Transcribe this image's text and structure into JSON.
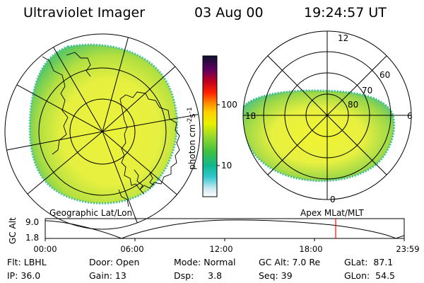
{
  "header": {
    "instrument": "Ultraviolet Imager",
    "date": "03 Aug 00",
    "time": "19:24:57 UT"
  },
  "left_panel": {
    "caption": "Geographic Lat/Lon"
  },
  "right_panel": {
    "caption": "Apex MLat/MLT",
    "mlt_labels": {
      "top": "12",
      "left": "18",
      "right": "6",
      "bottom": "0"
    },
    "mlat_labels": [
      "60",
      "70",
      "80"
    ]
  },
  "colorbar": {
    "unit_label": "photon cm",
    "unit_exp1": "-2",
    "unit_mid": "s",
    "unit_exp2": "-1",
    "ticks": [
      "100",
      "10"
    ],
    "scale": "log"
  },
  "altitude_plot": {
    "ylabel": "GC Alt",
    "y_max": "9.0",
    "y_min": "1.8",
    "x_ticks": [
      "00:00",
      "06:00",
      "12:00",
      "18:00",
      "23:59"
    ],
    "current_time_marker_hours": 19.42,
    "marker_color": "#ff0000"
  },
  "info": {
    "filter": "Flt: LBHL",
    "door": "Door: Open",
    "mode": "Mode: Normal",
    "gc_alt": "GC Alt: 7.0 Re",
    "glat": "GLat:  87.1",
    "ip": "IP: 36.0",
    "gain": "Gain: 13",
    "dsp": "Dsp:     3.8",
    "seq": "Seq: 39",
    "glon": "GLon:  54.5"
  }
}
